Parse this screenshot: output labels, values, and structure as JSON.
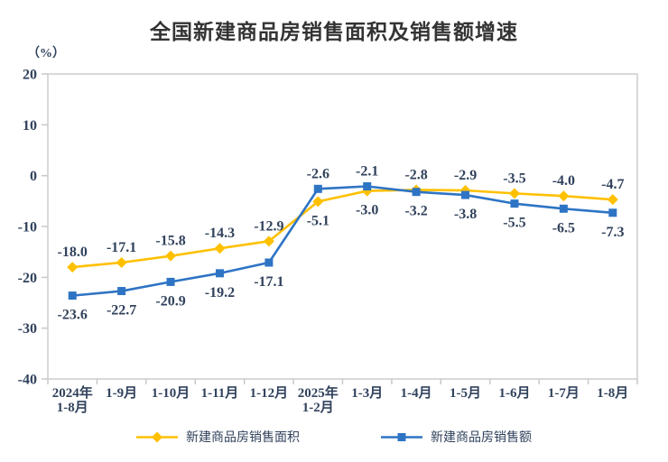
{
  "chart_data": {
    "type": "line",
    "title": "全国新建商品房销售面积及销售额增速",
    "ylabel": "（%）",
    "xlabel": "",
    "ylim": [
      -40,
      20
    ],
    "y_ticks": [
      20,
      10,
      0,
      -10,
      -20,
      -30,
      -40
    ],
    "grid": false,
    "legend_position": "bottom",
    "data_labels": true,
    "categories": [
      [
        "2024年",
        "1-8月"
      ],
      [
        "1-9月"
      ],
      [
        "1-10月"
      ],
      [
        "1-11月"
      ],
      [
        "1-12月"
      ],
      [
        "2025年",
        "1-2月"
      ],
      [
        "1-3月"
      ],
      [
        "1-4月"
      ],
      [
        "1-5月"
      ],
      [
        "1-6月"
      ],
      [
        "1-7月"
      ],
      [
        "1-8月"
      ]
    ],
    "series": [
      {
        "key": "sales-area",
        "name": "新建商品房销售面积",
        "marker": "diamond",
        "color": "#FFC000",
        "values": [
          -18.0,
          -17.1,
          -15.8,
          -14.3,
          -12.9,
          -5.1,
          -3.0,
          -2.8,
          -2.9,
          -3.5,
          -4.0,
          -4.7
        ]
      },
      {
        "key": "sales-amount",
        "name": "新建商品房销售额",
        "marker": "square",
        "color": "#2E74C4",
        "values": [
          -23.6,
          -22.7,
          -20.9,
          -19.2,
          -17.1,
          -2.6,
          -2.1,
          -3.2,
          -3.8,
          -5.5,
          -6.5,
          -7.3
        ]
      }
    ]
  },
  "colors": {
    "axis_border": "#D9D9D9",
    "tick": "#C9C9C9",
    "label_text": "#31425c",
    "title_text": "#333333"
  }
}
